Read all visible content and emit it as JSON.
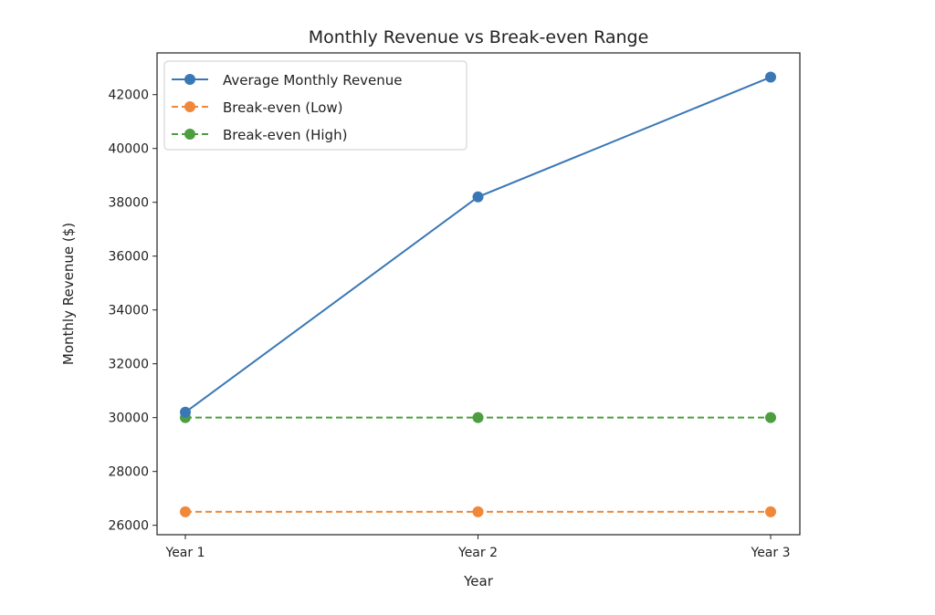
{
  "chart_data": {
    "type": "line",
    "title": "Monthly Revenue vs Break-even Range",
    "xlabel": "Year",
    "ylabel": "Monthly Revenue ($)",
    "categories": [
      "Year 1",
      "Year 2",
      "Year 3"
    ],
    "ylim": [
      25650,
      43550
    ],
    "yticks": [
      26000,
      28000,
      30000,
      32000,
      34000,
      36000,
      38000,
      40000,
      42000
    ],
    "grid": false,
    "legend_position": "top-left",
    "series": [
      {
        "name": "Average Monthly Revenue",
        "values": [
          30200,
          38200,
          42650
        ],
        "color": "#3a78b5",
        "style": "solid"
      },
      {
        "name": "Break-even (Low)",
        "values": [
          26500,
          26500,
          26500
        ],
        "color": "#f0883a",
        "style": "dashed"
      },
      {
        "name": "Break-even (High)",
        "values": [
          30000,
          30000,
          30000
        ],
        "color": "#4c9e3f",
        "style": "dashed"
      }
    ]
  }
}
